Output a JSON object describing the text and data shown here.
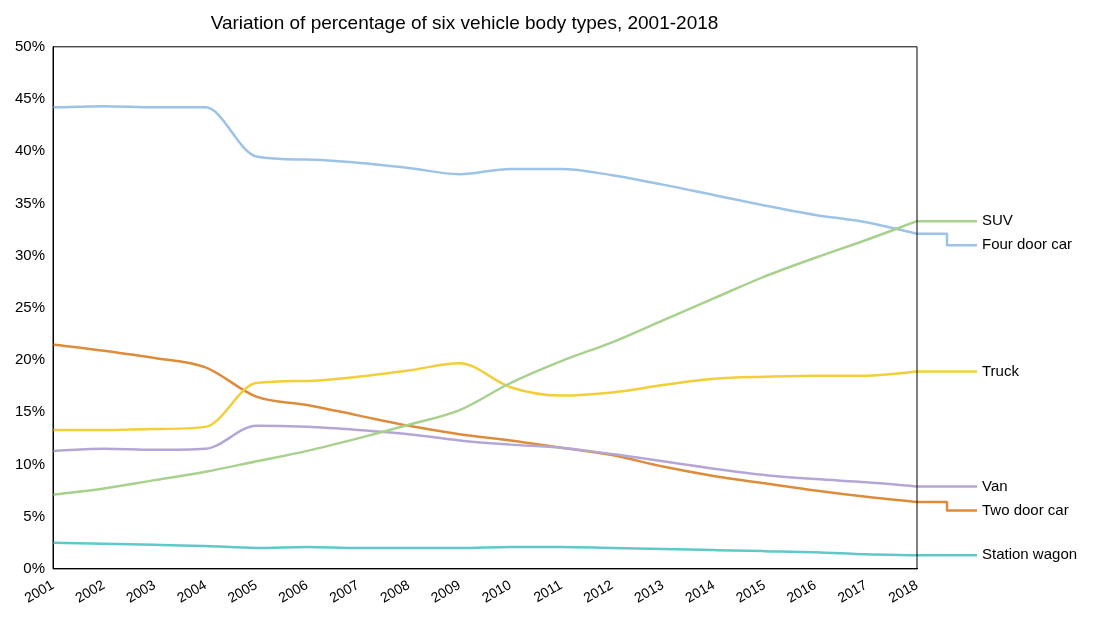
{
  "chart_data": {
    "type": "line",
    "title": "Variation of percentage of six vehicle body types, 2001-2018",
    "categories": [
      "2001",
      "2002",
      "2003",
      "2004",
      "2005",
      "2006",
      "2007",
      "2008",
      "2009",
      "2010",
      "2011",
      "2012",
      "2013",
      "2014",
      "2015",
      "2016",
      "2017",
      "2018"
    ],
    "ylim": [
      0,
      50
    ],
    "yticks": [
      {
        "value": 0,
        "label": "0%"
      },
      {
        "value": 5,
        "label": "5%"
      },
      {
        "value": 10,
        "label": "10%"
      },
      {
        "value": 15,
        "label": "15%"
      },
      {
        "value": 20,
        "label": "20%"
      },
      {
        "value": 25,
        "label": "25%"
      },
      {
        "value": 30,
        "label": "30%"
      },
      {
        "value": 35,
        "label": "35%"
      },
      {
        "value": 40,
        "label": "40%"
      },
      {
        "value": 45,
        "label": "45%"
      },
      {
        "value": 50,
        "label": "50%"
      }
    ],
    "grid": false,
    "legend": "right",
    "marker": "none",
    "line_style": "solid",
    "series": [
      {
        "name": "SUV",
        "color": "#a9d18e",
        "values": [
          7.1,
          7.7,
          8.5,
          9.3,
          10.3,
          11.3,
          12.5,
          13.8,
          15.2,
          17.8,
          19.9,
          21.7,
          23.8,
          25.9,
          28.0,
          29.8,
          31.5,
          33.3
        ]
      },
      {
        "name": "Four door car",
        "color": "#9dc3e6",
        "values": [
          44.2,
          44.3,
          44.2,
          44.2,
          39.5,
          39.2,
          38.9,
          38.4,
          37.8,
          38.3,
          38.3,
          37.7,
          36.8,
          35.8,
          34.8,
          33.9,
          33.2,
          32.1
        ]
      },
      {
        "name": "Truck",
        "color": "#f2cf3a",
        "values": [
          13.3,
          13.3,
          13.4,
          13.6,
          17.8,
          18.0,
          18.4,
          19.0,
          19.7,
          17.4,
          16.6,
          16.9,
          17.6,
          18.2,
          18.4,
          18.5,
          18.5,
          18.9
        ]
      },
      {
        "name": "Van",
        "color": "#b4a7d6",
        "values": [
          11.3,
          11.5,
          11.4,
          11.5,
          13.7,
          13.6,
          13.3,
          12.9,
          12.3,
          11.9,
          11.6,
          11.0,
          10.3,
          9.6,
          9.0,
          8.6,
          8.3,
          7.9
        ]
      },
      {
        "name": "Two door car",
        "color": "#dd8c3c",
        "values": [
          21.5,
          20.9,
          20.2,
          19.3,
          16.5,
          15.7,
          14.7,
          13.7,
          12.9,
          12.3,
          11.6,
          10.9,
          9.8,
          8.9,
          8.2,
          7.5,
          6.9,
          6.4
        ]
      },
      {
        "name": "Station wagon",
        "color": "#5fc9c9",
        "values": [
          2.5,
          2.4,
          2.3,
          2.2,
          2.0,
          2.1,
          2.0,
          2.0,
          2.0,
          2.1,
          2.1,
          2.0,
          1.9,
          1.8,
          1.7,
          1.6,
          1.4,
          1.3
        ]
      }
    ]
  }
}
